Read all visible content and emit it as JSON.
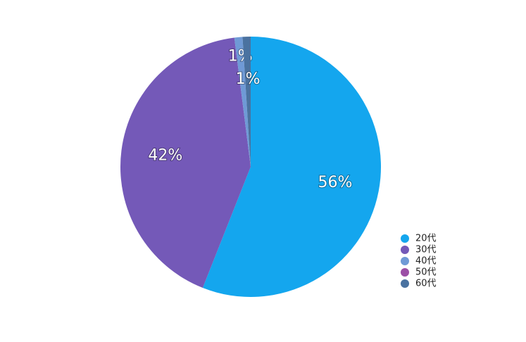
{
  "chart_data": {
    "type": "pie",
    "categories": [
      "20代",
      "30代",
      "40代",
      "50代",
      "60代"
    ],
    "values": [
      56,
      42,
      1,
      0,
      1
    ],
    "value_labels": [
      "56%",
      "42%",
      "1%",
      null,
      "1%"
    ],
    "colors": [
      "#14a6ee",
      "#7459b8",
      "#6f9ad6",
      "#9b4fa6",
      "#4a72a0"
    ],
    "legend": "right"
  }
}
